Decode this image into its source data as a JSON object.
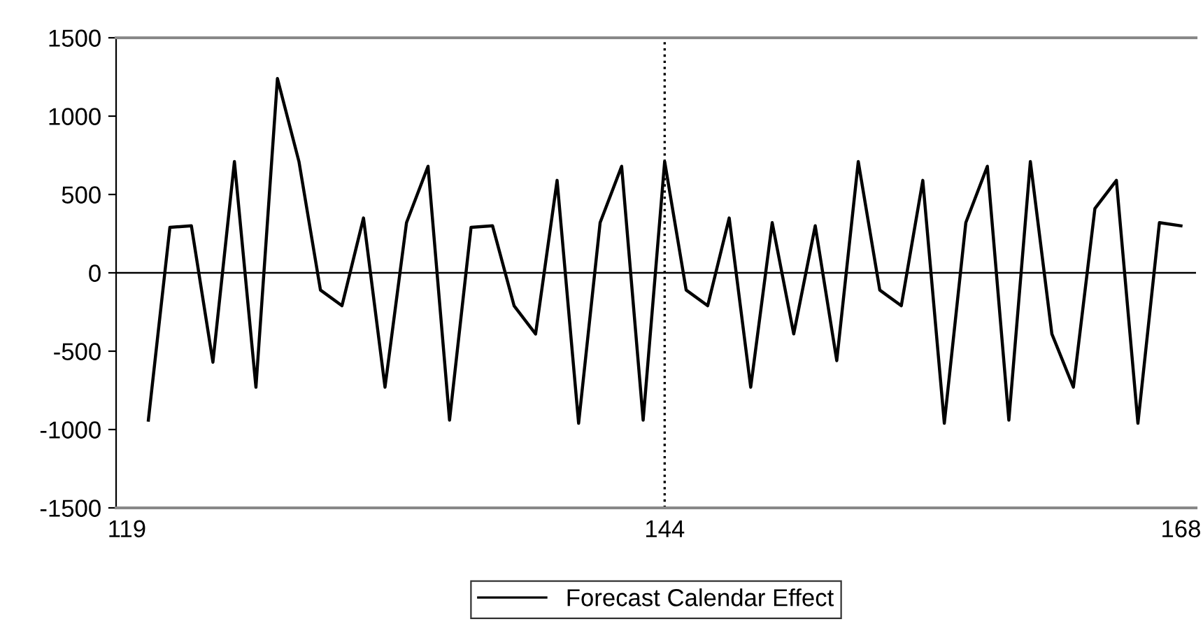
{
  "chart_data": {
    "type": "line",
    "x": [
      120,
      121,
      122,
      123,
      124,
      125,
      126,
      127,
      128,
      129,
      130,
      131,
      132,
      133,
      134,
      135,
      136,
      137,
      138,
      139,
      140,
      141,
      142,
      143,
      144,
      145,
      146,
      147,
      148,
      149,
      150,
      151,
      152,
      153,
      154,
      155,
      156,
      157,
      158,
      159,
      160,
      161,
      162,
      163,
      164,
      165,
      166,
      167,
      168
    ],
    "series": [
      {
        "name": "Forecast Calendar Effect",
        "color": "#000000",
        "values": [
          -940,
          290,
          300,
          -570,
          710,
          -730,
          1240,
          710,
          -110,
          -210,
          350,
          -730,
          320,
          680,
          -940,
          290,
          300,
          -210,
          -390,
          590,
          -960,
          320,
          680,
          -940,
          710,
          -110,
          -210,
          350,
          -730,
          320,
          -390,
          300,
          -560,
          710,
          -110,
          -210,
          590,
          -960,
          320,
          680,
          -940,
          710,
          -390,
          -730,
          410,
          590,
          -960,
          320,
          300
        ]
      }
    ],
    "xlim": [
      118.5,
      168.7
    ],
    "xticks": [
      119,
      144,
      168
    ],
    "ylim": [
      -1500,
      1500
    ],
    "yticks": [
      -1500,
      -1000,
      -500,
      0,
      500,
      1000,
      1500
    ],
    "ref_lines": [
      {
        "axis": "y",
        "value": 0,
        "color": "#000000",
        "line_style": "solid"
      },
      {
        "axis": "x",
        "value": 144,
        "color": "#000000",
        "line_style": "dotted"
      }
    ],
    "grid": false,
    "legend": "bottom",
    "marker": "none",
    "line_style": "solid"
  }
}
